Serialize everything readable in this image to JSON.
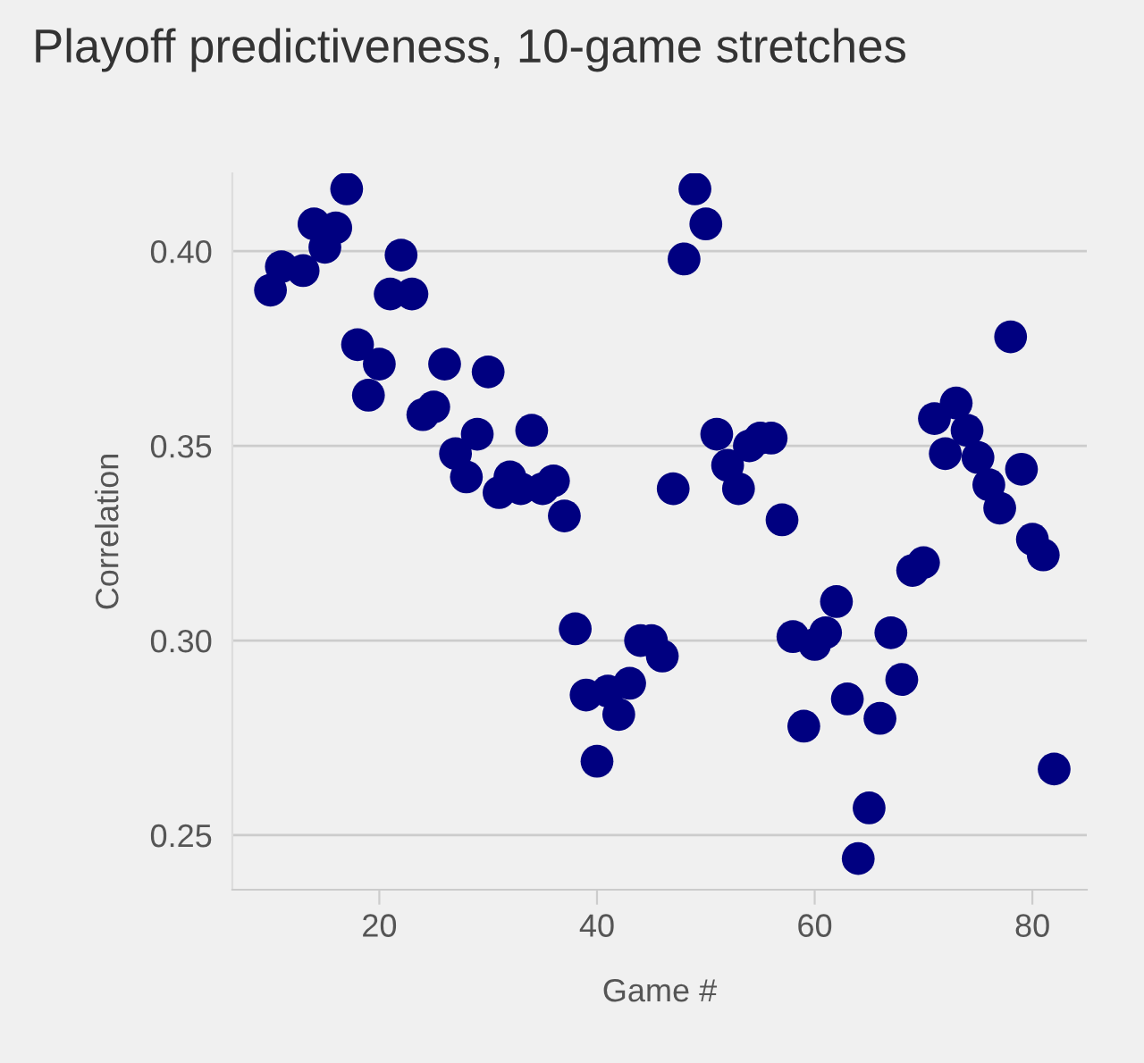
{
  "chart_data": {
    "type": "scatter",
    "title": "Playoff predictiveness, 10-game stretches",
    "xlabel": "Game #",
    "ylabel": "Correlation",
    "x": [
      10,
      11,
      13,
      14,
      15,
      16,
      17,
      18,
      19,
      20,
      21,
      22,
      23,
      24,
      25,
      26,
      27,
      28,
      29,
      30,
      31,
      32,
      33,
      34,
      35,
      36,
      37,
      38,
      39,
      40,
      41,
      42,
      43,
      44,
      45,
      46,
      47,
      48,
      49,
      50,
      51,
      52,
      53,
      54,
      55,
      56,
      57,
      58,
      59,
      60,
      61,
      62,
      63,
      64,
      65,
      66,
      67,
      68,
      69,
      70,
      71,
      72,
      73,
      74,
      75,
      76,
      77,
      78,
      79,
      80,
      81,
      82
    ],
    "series": [
      {
        "color": "#000080",
        "values": [
          0.39,
          0.396,
          0.395,
          0.407,
          0.401,
          0.406,
          0.416,
          0.376,
          0.363,
          0.371,
          0.389,
          0.399,
          0.389,
          0.358,
          0.36,
          0.371,
          0.348,
          0.342,
          0.353,
          0.369,
          0.338,
          0.342,
          0.339,
          0.354,
          0.339,
          0.341,
          0.332,
          0.303,
          0.286,
          0.269,
          0.287,
          0.281,
          0.289,
          0.3,
          0.3,
          0.296,
          0.339,
          0.398,
          0.416,
          0.407,
          0.353,
          0.345,
          0.339,
          0.35,
          0.352,
          0.352,
          0.331,
          0.301,
          0.278,
          0.299,
          0.302,
          0.31,
          0.285,
          0.244,
          0.257,
          0.28,
          0.302,
          0.29,
          0.318,
          0.32,
          0.357,
          0.348,
          0.361,
          0.354,
          0.347,
          0.34,
          0.334,
          0.378,
          0.344,
          0.326,
          0.322,
          0.267
        ]
      }
    ],
    "xlim": [
      6.5,
      85
    ],
    "ylim": [
      0.236,
      0.42
    ],
    "xticks": [
      20,
      40,
      60,
      80
    ],
    "yticks": [
      {
        "value": 0.25,
        "label": "0.25"
      },
      {
        "value": 0.3,
        "label": "0.30"
      },
      {
        "value": 0.35,
        "label": "0.35"
      },
      {
        "value": 0.4,
        "label": "0.40"
      }
    ],
    "grid": "y",
    "marker": "circle"
  }
}
